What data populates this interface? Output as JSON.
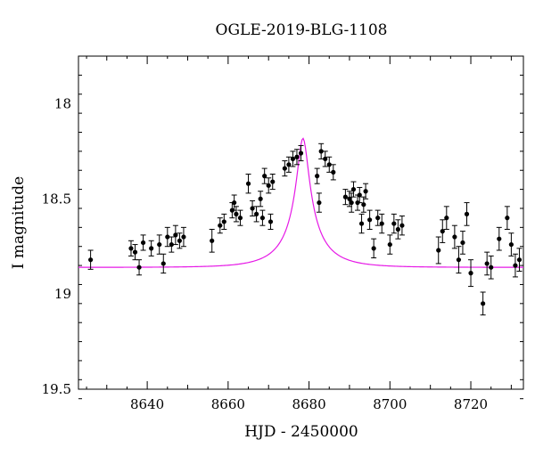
{
  "chart_data": {
    "type": "scatter",
    "title": "OGLE-2019-BLG-1108",
    "xlabel": "HJD - 2450000",
    "ylabel": "I magnitude",
    "xlim": [
      8623,
      8733
    ],
    "ylim": [
      19.5,
      17.75
    ],
    "y_inverted": true,
    "xticks": [
      8640,
      8660,
      8680,
      8700,
      8720
    ],
    "yticks": [
      18,
      18.5,
      19,
      19.5
    ],
    "grid": false,
    "colors": {
      "points": "#000000",
      "model": "#e619e6"
    },
    "series": [
      {
        "kind": "points",
        "x": [
          8626,
          8636,
          8637,
          8638,
          8639,
          8641,
          8643,
          8644,
          8645,
          8646,
          8647,
          8648,
          8649,
          8656,
          8658,
          8659,
          8661,
          8661.5,
          8662,
          8663,
          8665,
          8666,
          8667,
          8668,
          8668.5,
          8669,
          8670,
          8670.5,
          8671,
          8674,
          8675,
          8676,
          8677,
          8678,
          8682,
          8682.5,
          8683,
          8684,
          8685,
          8686,
          8689,
          8690,
          8690.5,
          8691,
          8692,
          8692.5,
          8693,
          8693.5,
          8694,
          8695,
          8696,
          8697,
          8698,
          8700,
          8701,
          8702,
          8703,
          8712,
          8713,
          8714,
          8716,
          8717,
          8718,
          8719,
          8720,
          8723,
          8724,
          8725,
          8727,
          8729,
          8730,
          8731,
          8732
        ],
        "y": [
          18.82,
          18.76,
          18.78,
          18.86,
          18.73,
          18.76,
          18.74,
          18.84,
          18.7,
          18.74,
          18.69,
          18.72,
          18.7,
          18.72,
          18.64,
          18.62,
          18.56,
          18.52,
          18.58,
          18.6,
          18.42,
          18.55,
          18.58,
          18.5,
          18.6,
          18.38,
          18.43,
          18.62,
          18.41,
          18.34,
          18.32,
          18.29,
          18.28,
          18.26,
          18.38,
          18.52,
          18.25,
          18.29,
          18.32,
          18.36,
          18.49,
          18.5,
          18.52,
          18.45,
          18.52,
          18.48,
          18.63,
          18.53,
          18.46,
          18.61,
          18.76,
          18.6,
          18.63,
          18.74,
          18.63,
          18.66,
          18.64,
          18.77,
          18.67,
          18.6,
          18.7,
          18.82,
          18.73,
          18.58,
          18.89,
          19.05,
          18.84,
          18.86,
          18.71,
          18.6,
          18.74,
          18.85,
          18.82
        ],
        "yerr": [
          0.05,
          0.04,
          0.04,
          0.04,
          0.04,
          0.04,
          0.05,
          0.05,
          0.05,
          0.04,
          0.05,
          0.04,
          0.05,
          0.06,
          0.04,
          0.04,
          0.04,
          0.04,
          0.04,
          0.04,
          0.05,
          0.04,
          0.04,
          0.04,
          0.04,
          0.04,
          0.04,
          0.04,
          0.04,
          0.04,
          0.04,
          0.04,
          0.04,
          0.04,
          0.04,
          0.05,
          0.04,
          0.04,
          0.04,
          0.04,
          0.04,
          0.04,
          0.05,
          0.04,
          0.04,
          0.04,
          0.05,
          0.04,
          0.04,
          0.05,
          0.05,
          0.04,
          0.05,
          0.05,
          0.05,
          0.05,
          0.05,
          0.07,
          0.06,
          0.06,
          0.06,
          0.07,
          0.06,
          0.06,
          0.07,
          0.06,
          0.06,
          0.06,
          0.06,
          0.06,
          0.06,
          0.06,
          0.06
        ]
      },
      {
        "kind": "model",
        "t0": 8678.5,
        "tE": 10,
        "u0": 0.14,
        "baseline_mag": 18.86,
        "blend_fraction": 0.14
      }
    ]
  }
}
